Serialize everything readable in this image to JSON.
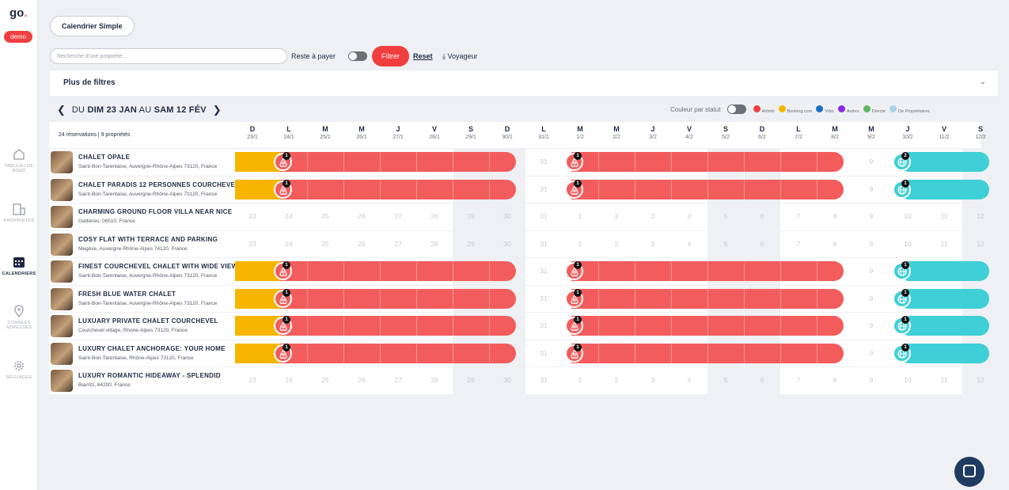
{
  "app": {
    "logo": "go",
    "logo_dot": ".",
    "env_badge": "demo"
  },
  "nav": [
    {
      "label": "TABLEAU DE BORD",
      "icon": "home-icon"
    },
    {
      "label": "PROPRIÉTÉS",
      "icon": "building-icon"
    },
    {
      "label": "CALENDRIERS",
      "icon": "calendar-icon"
    },
    {
      "label": "DONNÉES ADRESSES",
      "icon": "location-pin-icon"
    },
    {
      "label": "RÉGLAGES",
      "icon": "gear-icon"
    }
  ],
  "toolbar": {
    "simple_calendar": "Calendrier Simple",
    "search_placeholder": "Recherche d'une propriété ...",
    "reste_label": "Reste à payer",
    "filter_button": "Filtrer",
    "reset_link": "Reset",
    "voyageur_link": "Voyageur",
    "more_filters": "Plus de filtres"
  },
  "range": {
    "prefix": "DU",
    "start": "DIM 23 JAN",
    "mid": "AU",
    "end": "SAM 12 FÉV"
  },
  "legend": {
    "title": "Couleur par statut",
    "items": [
      {
        "label": "Airbnb",
        "color": "#f03e3e"
      },
      {
        "label": "Booking.com",
        "color": "#f7b500"
      },
      {
        "label": "Vrbo",
        "color": "#1a6fc4"
      },
      {
        "label": "Autres",
        "color": "#8a2be2"
      },
      {
        "label": "Directe",
        "color": "#5cb85c"
      },
      {
        "label": "De Propriétaires",
        "color": "#a9d4ee"
      }
    ]
  },
  "summary": "24 réservations | 9 propriétés",
  "days": [
    {
      "d": "D",
      "date": "23/1"
    },
    {
      "d": "L",
      "date": "24/1"
    },
    {
      "d": "M",
      "date": "25/1"
    },
    {
      "d": "M",
      "date": "26/1"
    },
    {
      "d": "J",
      "date": "27/1"
    },
    {
      "d": "V",
      "date": "28/1"
    },
    {
      "d": "S",
      "date": "29/1"
    },
    {
      "d": "D",
      "date": "30/1"
    },
    {
      "d": "L",
      "date": "31/1"
    },
    {
      "d": "M",
      "date": "1/2"
    },
    {
      "d": "M",
      "date": "2/2"
    },
    {
      "d": "J",
      "date": "3/2"
    },
    {
      "d": "V",
      "date": "4/2"
    },
    {
      "d": "S",
      "date": "5/2"
    },
    {
      "d": "D",
      "date": "6/2"
    },
    {
      "d": "L",
      "date": "7/2"
    },
    {
      "d": "M",
      "date": "8/2"
    },
    {
      "d": "M",
      "date": "9/2"
    },
    {
      "d": "J",
      "date": "10/2"
    },
    {
      "d": "V",
      "date": "11/2"
    },
    {
      "d": "S",
      "date": "12/2"
    }
  ],
  "day_numbers": [
    "23",
    "24",
    "25",
    "26",
    "27",
    "28",
    "29",
    "30",
    "31",
    "1",
    "2",
    "3",
    "4",
    "5",
    "6",
    "7",
    "8",
    "9",
    "10",
    "11",
    "12"
  ],
  "properties": [
    {
      "name": "CHALET OPALE",
      "address": "Saint-Bon-Tarentaise, Auvergne-Rhône-Alpes 73120, France",
      "booked": true,
      "badges": [
        "1",
        "1",
        "2"
      ]
    },
    {
      "name": "CHALET PARADIS 12 PERSONNES COURCHEVEL",
      "address": "Saint-Bon-Tarentaise, Auvergne-Rhône-Alpes 73120, France",
      "booked": true,
      "badges": [
        "1",
        "1",
        "1"
      ]
    },
    {
      "name": "CHARMING GROUND FLOOR VILLA NEAR NICE",
      "address": "Gattières, 06510, France",
      "booked": false
    },
    {
      "name": "COSY FLAT WITH TERRACE AND PARKING",
      "address": "Megève, Auvergne-Rhône-Alpes 74120, France",
      "booked": false
    },
    {
      "name": "FINEST COURCHEVEL CHALET WITH WIDE VIEW",
      "address": "Saint-Bon-Tarentaise, Auvergne-Rhône-Alpes 73120, France",
      "booked": true,
      "badges": [
        "1",
        "1",
        "1"
      ]
    },
    {
      "name": "FRESH BLUE WATER CHALET",
      "address": "Saint-Bon-Tarentaise, Auvergne-Rhône-Alpes 73120, France",
      "booked": true,
      "badges": [
        "1",
        "1",
        "1"
      ]
    },
    {
      "name": "LUXUARY PRIVATE CHALET COURCHEVEL",
      "address": "Courchevel village, Rhone-Alpes 73120, France",
      "booked": true,
      "badges": [
        "1",
        "1",
        "1"
      ]
    },
    {
      "name": "LUXURY CHALET ANCHORAGE: YOUR HOME",
      "address": "Saint-Bon-Tarentaise, Rhône-Alpes 73120, France",
      "booked": true,
      "badges": [
        "1",
        "1",
        "1"
      ]
    },
    {
      "name": "LUXURY ROMANTIC HIDEAWAY - SPLENDID",
      "address": "Biarritz, 64200, France",
      "booked": false
    }
  ]
}
